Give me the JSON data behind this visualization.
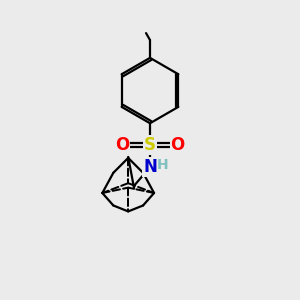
{
  "background_color": "#ebebeb",
  "atom_colors": {
    "C": "#000000",
    "N": "#0000cc",
    "S": "#cccc00",
    "O": "#ff0000",
    "H": "#7fbfbf"
  },
  "line_color": "#000000",
  "line_width": 1.6,
  "figsize": [
    3.0,
    3.0
  ],
  "dpi": 100
}
